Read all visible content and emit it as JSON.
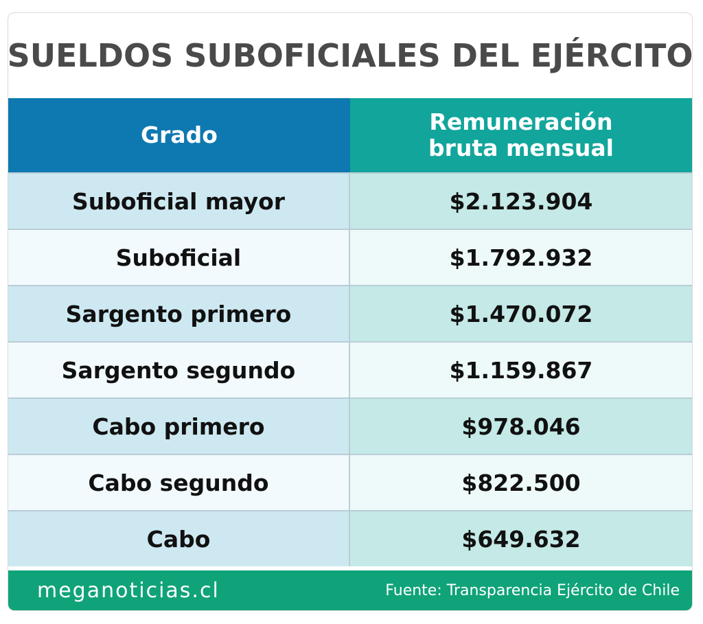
{
  "title": "SUELDOS SUBOFICIALES DEL EJÉRCITO",
  "table": {
    "headers": {
      "grado": "Grado",
      "remuneracion_line1": "Remuneración",
      "remuneracion_line2": "bruta mensual"
    },
    "rows": [
      {
        "grado": "Suboficial mayor",
        "remuneracion": "$2.123.904"
      },
      {
        "grado": "Suboficial",
        "remuneracion": "$1.792.932"
      },
      {
        "grado": "Sargento primero",
        "remuneracion": "$1.470.072"
      },
      {
        "grado": "Sargento segundo",
        "remuneracion": "$1.159.867"
      },
      {
        "grado": "Cabo primero",
        "remuneracion": "$978.046"
      },
      {
        "grado": "Cabo segundo",
        "remuneracion": "$822.500"
      },
      {
        "grado": "Cabo",
        "remuneracion": "$649.632"
      }
    ]
  },
  "footer": {
    "brand": "meganoticias.cl",
    "source": "Fuente: Transparencia Ejército de Chile"
  },
  "colors": {
    "header_grado": "#0e78b0",
    "header_remuneracion": "#12a59b",
    "footer": "#10a37a",
    "title_text": "#4a4a4a"
  }
}
